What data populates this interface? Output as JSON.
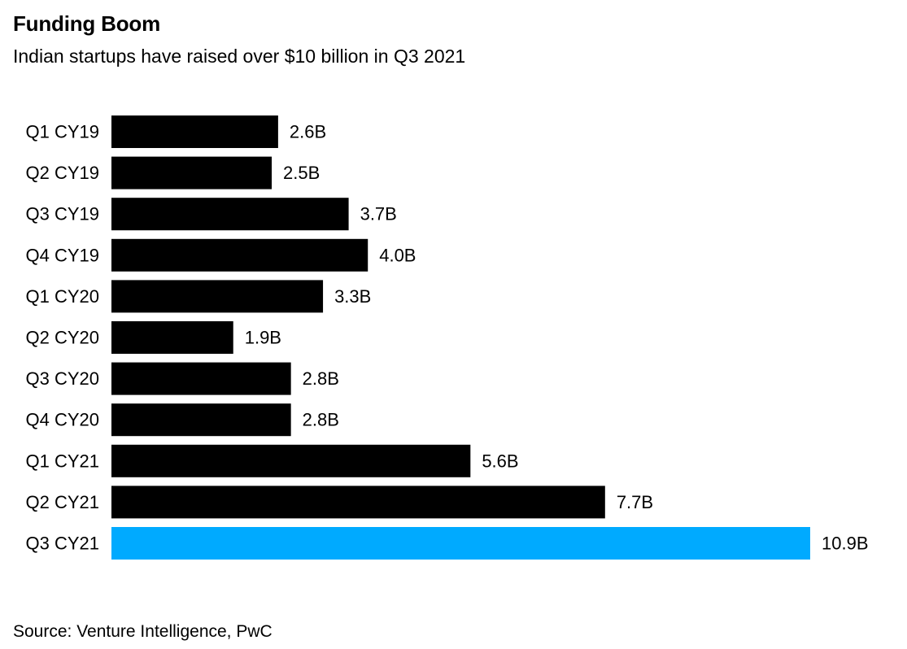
{
  "header": {
    "title": "Funding Boom",
    "subtitle": "Indian startups have raised over $10 billion in Q3 2021"
  },
  "footer": {
    "source": "Source: Venture Intelligence, PwC"
  },
  "colors": {
    "bar_default": "#000000",
    "bar_highlight": "#00aaff",
    "text": "#000000",
    "background": "#ffffff"
  },
  "chart_data": {
    "type": "bar",
    "orientation": "horizontal",
    "title": "Funding Boom",
    "subtitle": "Indian startups have raised over $10 billion in Q3 2021",
    "categories": [
      "Q1 CY19",
      "Q2 CY19",
      "Q3 CY19",
      "Q4 CY19",
      "Q1 CY20",
      "Q2 CY20",
      "Q3 CY20",
      "Q4 CY20",
      "Q1 CY21",
      "Q2 CY21",
      "Q3 CY21"
    ],
    "values": [
      2.6,
      2.5,
      3.7,
      4.0,
      3.3,
      1.9,
      2.8,
      2.8,
      5.6,
      7.7,
      10.9
    ],
    "value_labels": [
      "2.6B",
      "2.5B",
      "3.7B",
      "4.0B",
      "3.3B",
      "1.9B",
      "2.8B",
      "2.8B",
      "5.6B",
      "7.7B",
      "10.9B"
    ],
    "highlight_index": 10,
    "xlabel": "",
    "ylabel": "",
    "xlim": [
      0,
      10.9
    ],
    "grid": false,
    "legend": "none",
    "source": "Source: Venture Intelligence, PwC"
  }
}
